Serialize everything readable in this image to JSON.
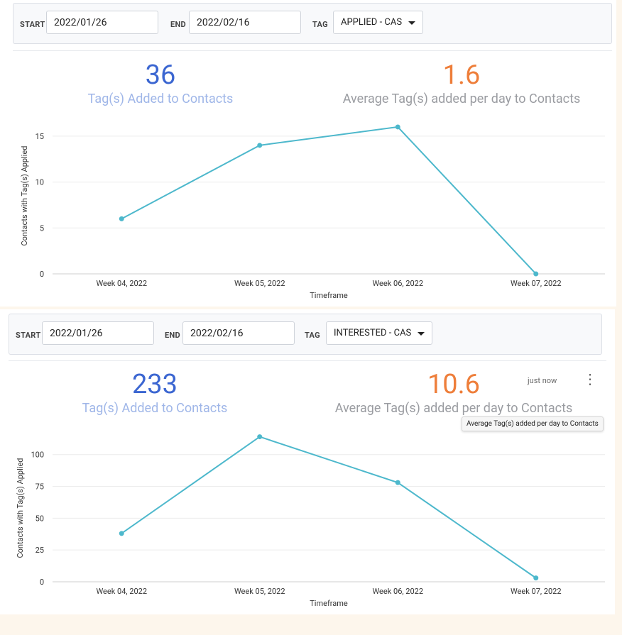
{
  "panels": [
    {
      "filters": {
        "start_label": "START",
        "start_value": "2022/01/26",
        "end_label": "END",
        "end_value": "2022/02/16",
        "tag_label": "TAG",
        "tag_value": "APPLIED - CAS"
      },
      "kpis": {
        "total_value": "36",
        "total_label": "Tag(s) Added to Contacts",
        "avg_value": "1.6",
        "avg_label": "Average Tag(s) added per day to Contacts"
      }
    },
    {
      "filters": {
        "start_label": "START",
        "start_value": "2022/01/26",
        "end_label": "END",
        "end_value": "2022/02/16",
        "tag_label": "TAG",
        "tag_value": "INTERESTED - CAS"
      },
      "kpis": {
        "total_value": "233",
        "total_label": "Tag(s) Added to Contacts",
        "avg_value": "10.6",
        "avg_label": "Average Tag(s) added per day to Contacts"
      },
      "status": "just now",
      "tooltip": "Average Tag(s) added per day to Contacts"
    }
  ],
  "colors": {
    "line": "#4db8cc",
    "total_value": "#3b66d1",
    "avg_value": "#ee7e3a"
  },
  "chart_data": [
    {
      "type": "line",
      "categories": [
        "Week 04, 2022",
        "Week 05, 2022",
        "Week 06, 2022",
        "Week 07, 2022"
      ],
      "series": [
        {
          "name": "Contacts with Tag(s) Applied",
          "values": [
            6,
            14,
            16,
            0
          ]
        }
      ],
      "xlabel": "Timeframe",
      "ylabel": "Contacts with Tag(s) Applied",
      "ylim": [
        0,
        17
      ],
      "yticks": [
        0,
        5,
        10,
        15
      ],
      "grid": true
    },
    {
      "type": "line",
      "categories": [
        "Week 04, 2022",
        "Week 05, 2022",
        "Week 06, 2022",
        "Week 07, 2022"
      ],
      "series": [
        {
          "name": "Contacts with Tag(s) Applied",
          "values": [
            38,
            114,
            78,
            3
          ]
        }
      ],
      "xlabel": "Timeframe",
      "ylabel": "Contacts with Tag(s) Applied",
      "ylim": [
        0,
        116
      ],
      "yticks": [
        0,
        25,
        50,
        75,
        100
      ],
      "grid": true
    }
  ]
}
